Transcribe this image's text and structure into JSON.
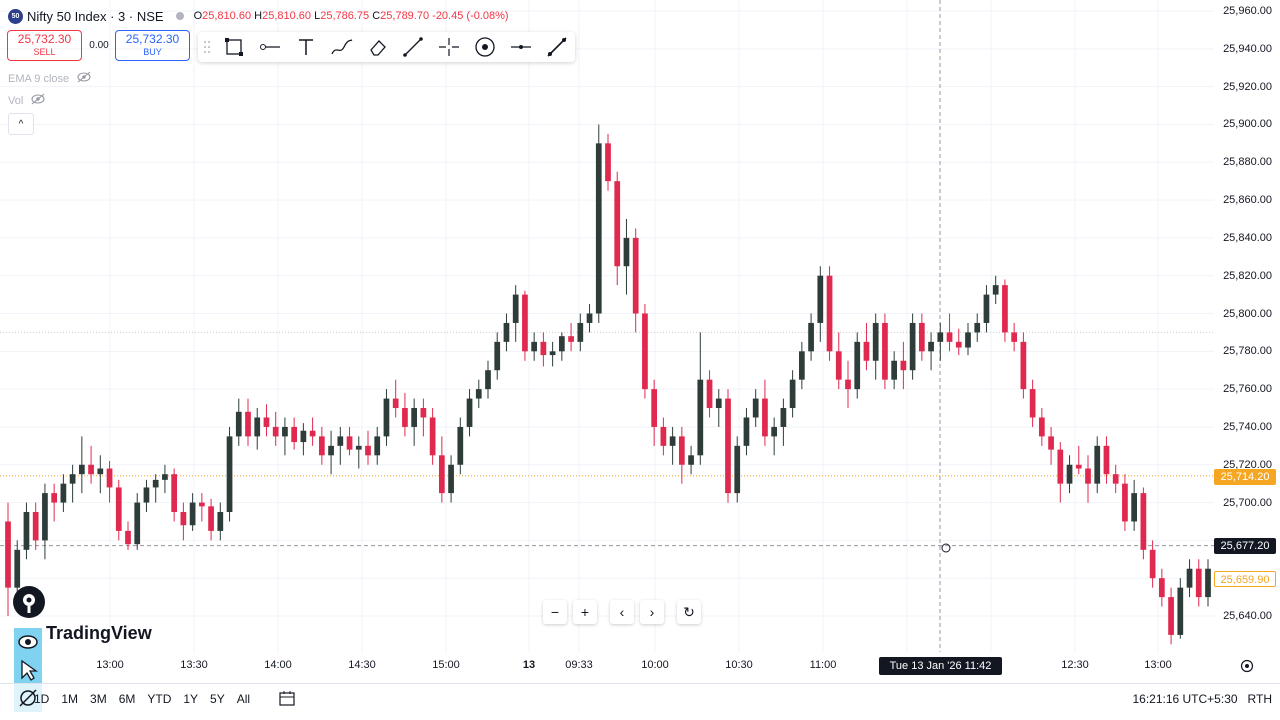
{
  "header": {
    "symbol_badge": "50",
    "title": "Nifty 50 Index · 3 · NSE",
    "open_label": "O",
    "open": "25,810.60",
    "high_label": "H",
    "high": "25,810.60",
    "low_label": "L",
    "low": "25,786.75",
    "close_label": "C",
    "close": "25,789.70",
    "change": "-20.45 (-0.08%)"
  },
  "trade": {
    "sell_price": "25,732.30",
    "sell_label": "SELL",
    "spread": "0.00",
    "buy_price": "25,732.30",
    "buy_label": "BUY"
  },
  "toolbar_icons": [
    "drag-handle-icon",
    "rectangle-icon",
    "horizontal-ray-icon",
    "text-icon",
    "brush-icon",
    "eraser-icon",
    "trend-line-icon",
    "crosshair-icon",
    "circle-icon",
    "horizontal-line-icon",
    "line-tool-icon"
  ],
  "indicators": [
    {
      "label": "EMA 9 close"
    },
    {
      "label": "Vol"
    }
  ],
  "collapse_symbol": "^",
  "price_axis": [
    "25,960.00",
    "25,940.00",
    "25,920.00",
    "25,900.00",
    "25,880.00",
    "25,860.00",
    "25,840.00",
    "25,820.00",
    "25,800.00",
    "25,780.00",
    "25,760.00",
    "25,740.00",
    "25,720.00",
    "25,700.00",
    "25,660.00",
    "25,640.00"
  ],
  "time_axis": [
    "13:00",
    "13:30",
    "14:00",
    "14:30",
    "15:00",
    "13",
    "09:33",
    "10:00",
    "10:30",
    "11:00",
    "12:30",
    "13:00"
  ],
  "price_labels": {
    "last": "25,714.20",
    "crosshair": "25,677.20",
    "bid": "25,659.90"
  },
  "crosshair_time": "Tue 13 Jan '26   11:42",
  "brand": "TradingView",
  "nav": {
    "zoom_out": "−",
    "zoom_in": "+",
    "left": "‹",
    "right": "›",
    "reset": "↻"
  },
  "bottom": {
    "ranges": [
      "1D",
      "1M",
      "3M",
      "6M",
      "YTD",
      "1Y",
      "5Y",
      "All"
    ],
    "clock": "16:21:16 UTC+5:30",
    "session": "RTH"
  },
  "colors": {
    "up": "#2e3d39",
    "down": "#e0294f",
    "accent": "#2962ff",
    "last_price": "#f5a623",
    "sell": "#f23645"
  },
  "chart_data": {
    "type": "candlestick",
    "title": "Nifty 50 Index · 3 · NSE",
    "interval": "3 minutes",
    "ylim": [
      25620,
      25970
    ],
    "x_ticks": [
      "13:00",
      "13:30",
      "14:00",
      "14:30",
      "15:00",
      "13",
      "09:33",
      "10:00",
      "10:30",
      "11:00",
      "11:30",
      "12:00",
      "12:30",
      "13:00"
    ],
    "candles": [
      [
        25690,
        25700,
        25640,
        25655
      ],
      [
        25655,
        25680,
        25650,
        25675
      ],
      [
        25675,
        25700,
        25670,
        25695
      ],
      [
        25695,
        25700,
        25675,
        25680
      ],
      [
        25680,
        25710,
        25670,
        25705
      ],
      [
        25705,
        25710,
        25690,
        25700
      ],
      [
        25700,
        25715,
        25695,
        25710
      ],
      [
        25710,
        25720,
        25700,
        25715
      ],
      [
        25715,
        25735,
        25705,
        25720
      ],
      [
        25720,
        25730,
        25710,
        25715
      ],
      [
        25715,
        25725,
        25705,
        25718
      ],
      [
        25718,
        25722,
        25700,
        25708
      ],
      [
        25708,
        25712,
        25680,
        25685
      ],
      [
        25685,
        25690,
        25675,
        25678
      ],
      [
        25678,
        25705,
        25675,
        25700
      ],
      [
        25700,
        25712,
        25695,
        25708
      ],
      [
        25708,
        25715,
        25700,
        25712
      ],
      [
        25712,
        25720,
        25705,
        25715
      ],
      [
        25715,
        25718,
        25690,
        25695
      ],
      [
        25695,
        25700,
        25680,
        25688
      ],
      [
        25688,
        25705,
        25685,
        25700
      ],
      [
        25700,
        25705,
        25690,
        25698
      ],
      [
        25698,
        25702,
        25680,
        25685
      ],
      [
        25685,
        25700,
        25680,
        25695
      ],
      [
        25695,
        25740,
        25690,
        25735
      ],
      [
        25735,
        25755,
        25730,
        25748
      ],
      [
        25748,
        25755,
        25730,
        25735
      ],
      [
        25735,
        25750,
        25728,
        25745
      ],
      [
        25745,
        25752,
        25735,
        25740
      ],
      [
        25740,
        25748,
        25730,
        25735
      ],
      [
        25735,
        25745,
        25725,
        25740
      ],
      [
        25740,
        25745,
        25728,
        25732
      ],
      [
        25732,
        25742,
        25725,
        25738
      ],
      [
        25738,
        25745,
        25730,
        25735
      ],
      [
        25735,
        25740,
        25720,
        25725
      ],
      [
        25725,
        25738,
        25715,
        25730
      ],
      [
        25730,
        25740,
        25720,
        25735
      ],
      [
        25735,
        25740,
        25725,
        25728
      ],
      [
        25728,
        25735,
        25718,
        25730
      ],
      [
        25730,
        25738,
        25720,
        25725
      ],
      [
        25725,
        25740,
        25720,
        25735
      ],
      [
        25735,
        25760,
        25730,
        25755
      ],
      [
        25755,
        25765,
        25745,
        25750
      ],
      [
        25750,
        25758,
        25735,
        25740
      ],
      [
        25740,
        25755,
        25730,
        25750
      ],
      [
        25750,
        25755,
        25735,
        25745
      ],
      [
        25745,
        25750,
        25720,
        25725
      ],
      [
        25725,
        25735,
        25700,
        25705
      ],
      [
        25705,
        25725,
        25700,
        25720
      ],
      [
        25720,
        25745,
        25715,
        25740
      ],
      [
        25740,
        25760,
        25735,
        25755
      ],
      [
        25755,
        25765,
        25750,
        25760
      ],
      [
        25760,
        25775,
        25755,
        25770
      ],
      [
        25770,
        25790,
        25765,
        25785
      ],
      [
        25785,
        25800,
        25780,
        25795
      ],
      [
        25795,
        25815,
        25785,
        25810
      ],
      [
        25810,
        25812,
        25775,
        25780
      ],
      [
        25780,
        25790,
        25775,
        25785
      ],
      [
        25785,
        25790,
        25772,
        25778
      ],
      [
        25778,
        25785,
        25772,
        25780
      ],
      [
        25780,
        25790,
        25775,
        25788
      ],
      [
        25788,
        25795,
        25780,
        25785
      ],
      [
        25785,
        25800,
        25780,
        25795
      ],
      [
        25795,
        25805,
        25790,
        25800
      ],
      [
        25800,
        25900,
        25795,
        25890
      ],
      [
        25890,
        25895,
        25865,
        25870
      ],
      [
        25870,
        25875,
        25815,
        25825
      ],
      [
        25825,
        25850,
        25810,
        25840
      ],
      [
        25840,
        25845,
        25790,
        25800
      ],
      [
        25800,
        25805,
        25755,
        25760
      ],
      [
        25760,
        25765,
        25730,
        25740
      ],
      [
        25740,
        25745,
        25725,
        25730
      ],
      [
        25730,
        25740,
        25720,
        25735
      ],
      [
        25735,
        25740,
        25710,
        25720
      ],
      [
        25720,
        25730,
        25715,
        25725
      ],
      [
        25725,
        25790,
        25720,
        25765
      ],
      [
        25765,
        25770,
        25745,
        25750
      ],
      [
        25750,
        25760,
        25740,
        25755
      ],
      [
        25755,
        25760,
        25700,
        25705
      ],
      [
        25705,
        25735,
        25700,
        25730
      ],
      [
        25730,
        25750,
        25725,
        25745
      ],
      [
        25745,
        25760,
        25740,
        25755
      ],
      [
        25755,
        25765,
        25730,
        25735
      ],
      [
        25735,
        25745,
        25725,
        25740
      ],
      [
        25740,
        25755,
        25730,
        25750
      ],
      [
        25750,
        25770,
        25745,
        25765
      ],
      [
        25765,
        25785,
        25760,
        25780
      ],
      [
        25780,
        25800,
        25775,
        25795
      ],
      [
        25795,
        25825,
        25785,
        25820
      ],
      [
        25820,
        25825,
        25775,
        25780
      ],
      [
        25780,
        25790,
        25760,
        25765
      ],
      [
        25765,
        25775,
        25750,
        25760
      ],
      [
        25760,
        25790,
        25755,
        25785
      ],
      [
        25785,
        25795,
        25770,
        25775
      ],
      [
        25775,
        25800,
        25765,
        25795
      ],
      [
        25795,
        25800,
        25760,
        25765
      ],
      [
        25765,
        25780,
        25760,
        25775
      ],
      [
        25775,
        25785,
        25760,
        25770
      ],
      [
        25770,
        25800,
        25765,
        25795
      ],
      [
        25795,
        25800,
        25775,
        25780
      ],
      [
        25780,
        25790,
        25770,
        25785
      ],
      [
        25785,
        25795,
        25775,
        25790
      ],
      [
        25790,
        25800,
        25780,
        25785
      ],
      [
        25785,
        25792,
        25778,
        25782
      ],
      [
        25782,
        25795,
        25778,
        25790
      ],
      [
        25790,
        25800,
        25785,
        25795
      ],
      [
        25795,
        25815,
        25790,
        25810
      ],
      [
        25810,
        25820,
        25805,
        25815
      ],
      [
        25815,
        25818,
        25785,
        25790
      ],
      [
        25790,
        25795,
        25780,
        25785
      ],
      [
        25785,
        25790,
        25755,
        25760
      ],
      [
        25760,
        25765,
        25740,
        25745
      ],
      [
        25745,
        25750,
        25730,
        25735
      ],
      [
        25735,
        25740,
        25720,
        25728
      ],
      [
        25728,
        25732,
        25700,
        25710
      ],
      [
        25710,
        25725,
        25705,
        25720
      ],
      [
        25720,
        25730,
        25715,
        25718
      ],
      [
        25718,
        25725,
        25700,
        25710
      ],
      [
        25710,
        25735,
        25705,
        25730
      ],
      [
        25730,
        25735,
        25710,
        25715
      ],
      [
        25715,
        25720,
        25705,
        25710
      ],
      [
        25710,
        25715,
        25685,
        25690
      ],
      [
        25690,
        25712,
        25685,
        25705
      ],
      [
        25705,
        25708,
        25670,
        25675
      ],
      [
        25675,
        25680,
        25655,
        25660
      ],
      [
        25660,
        25665,
        25645,
        25650
      ],
      [
        25650,
        25655,
        25625,
        25630
      ],
      [
        25630,
        25660,
        25628,
        25655
      ],
      [
        25655,
        25670,
        25650,
        25665
      ],
      [
        25665,
        25670,
        25645,
        25650
      ],
      [
        25650,
        25670,
        25645,
        25665
      ]
    ]
  }
}
